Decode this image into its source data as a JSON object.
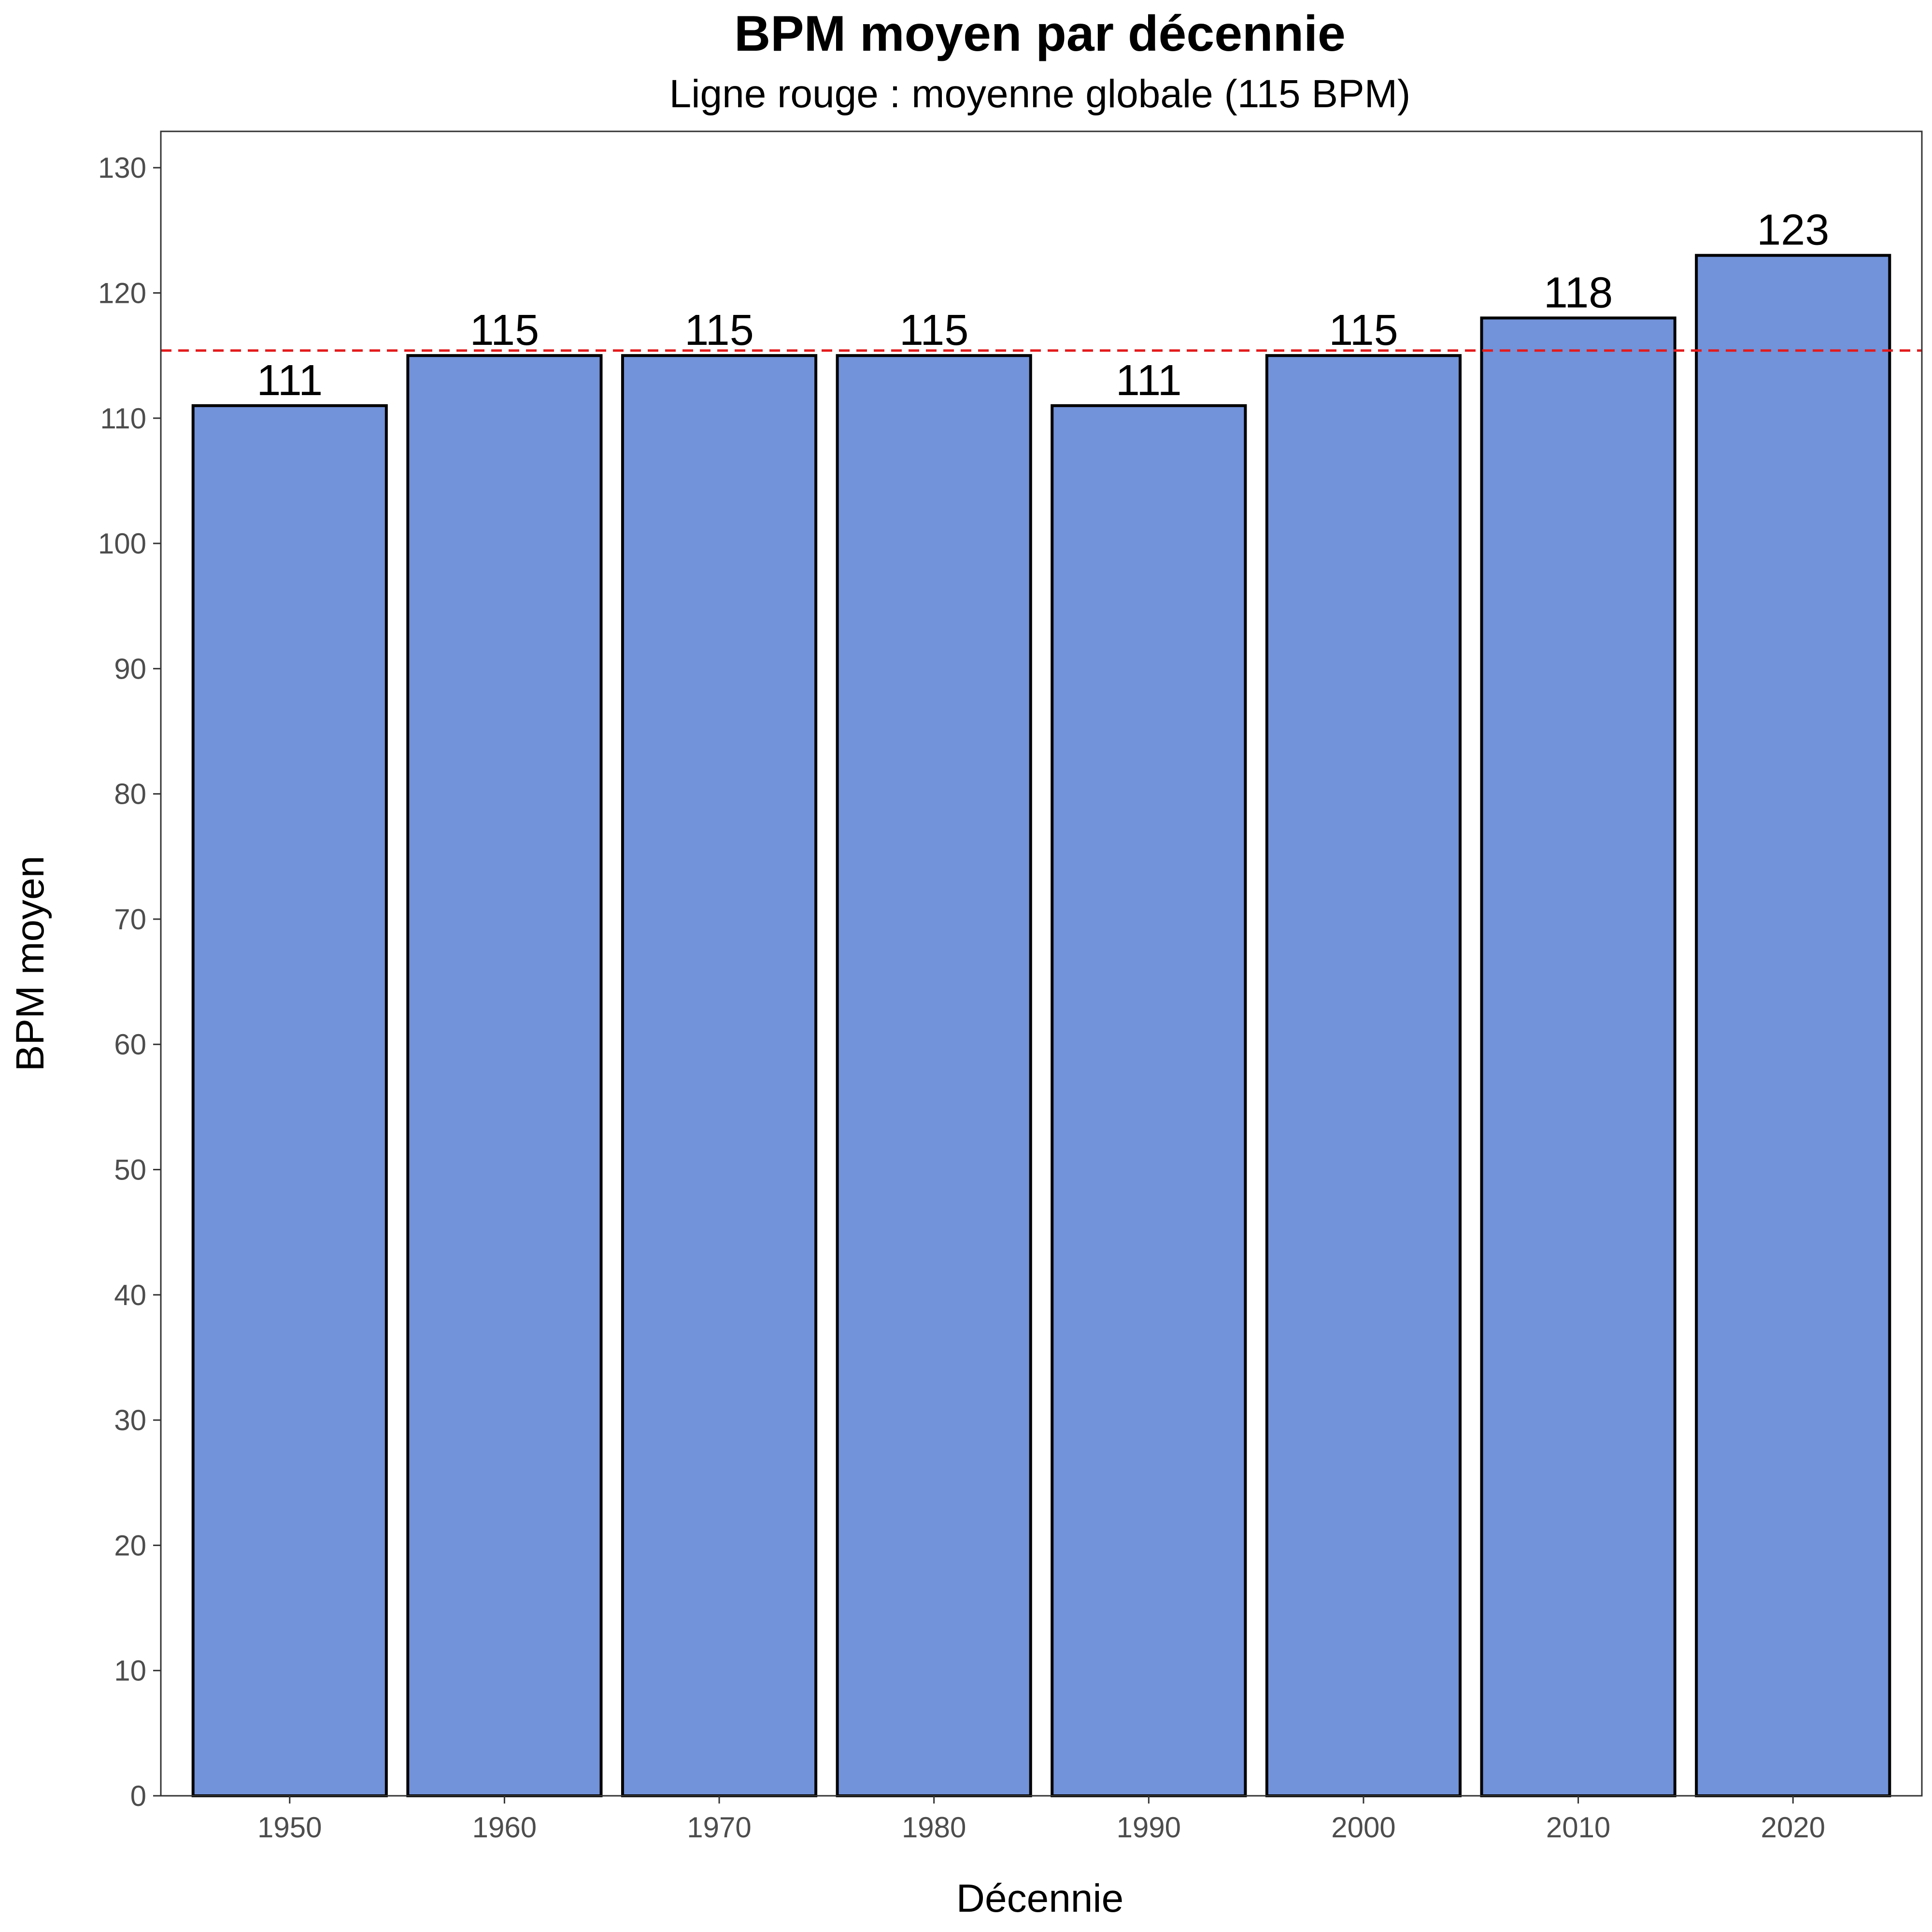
{
  "chart_data": {
    "type": "bar",
    "title": "BPM moyen par décennie",
    "subtitle": "Ligne rouge : moyenne globale (115 BPM)",
    "xlabel": "Décennie",
    "ylabel": "BPM moyen",
    "categories": [
      "1950",
      "1960",
      "1970",
      "1980",
      "1990",
      "2000",
      "2010",
      "2020"
    ],
    "values": [
      111,
      115,
      115,
      115,
      111,
      115,
      118,
      123
    ],
    "data_labels": [
      "111",
      "115",
      "115",
      "115",
      "111",
      "115",
      "118",
      "123"
    ],
    "yticks": [
      0,
      10,
      20,
      30,
      40,
      50,
      60,
      70,
      80,
      90,
      100,
      110,
      120,
      130
    ],
    "ylim": [
      0,
      132.9
    ],
    "reference_line": {
      "value": 115.4,
      "style": "dashed",
      "color": "#e41a1c"
    },
    "bar_color": "#7292d9",
    "bar_outline_color": "#000000",
    "grid": false,
    "legend": "none"
  }
}
